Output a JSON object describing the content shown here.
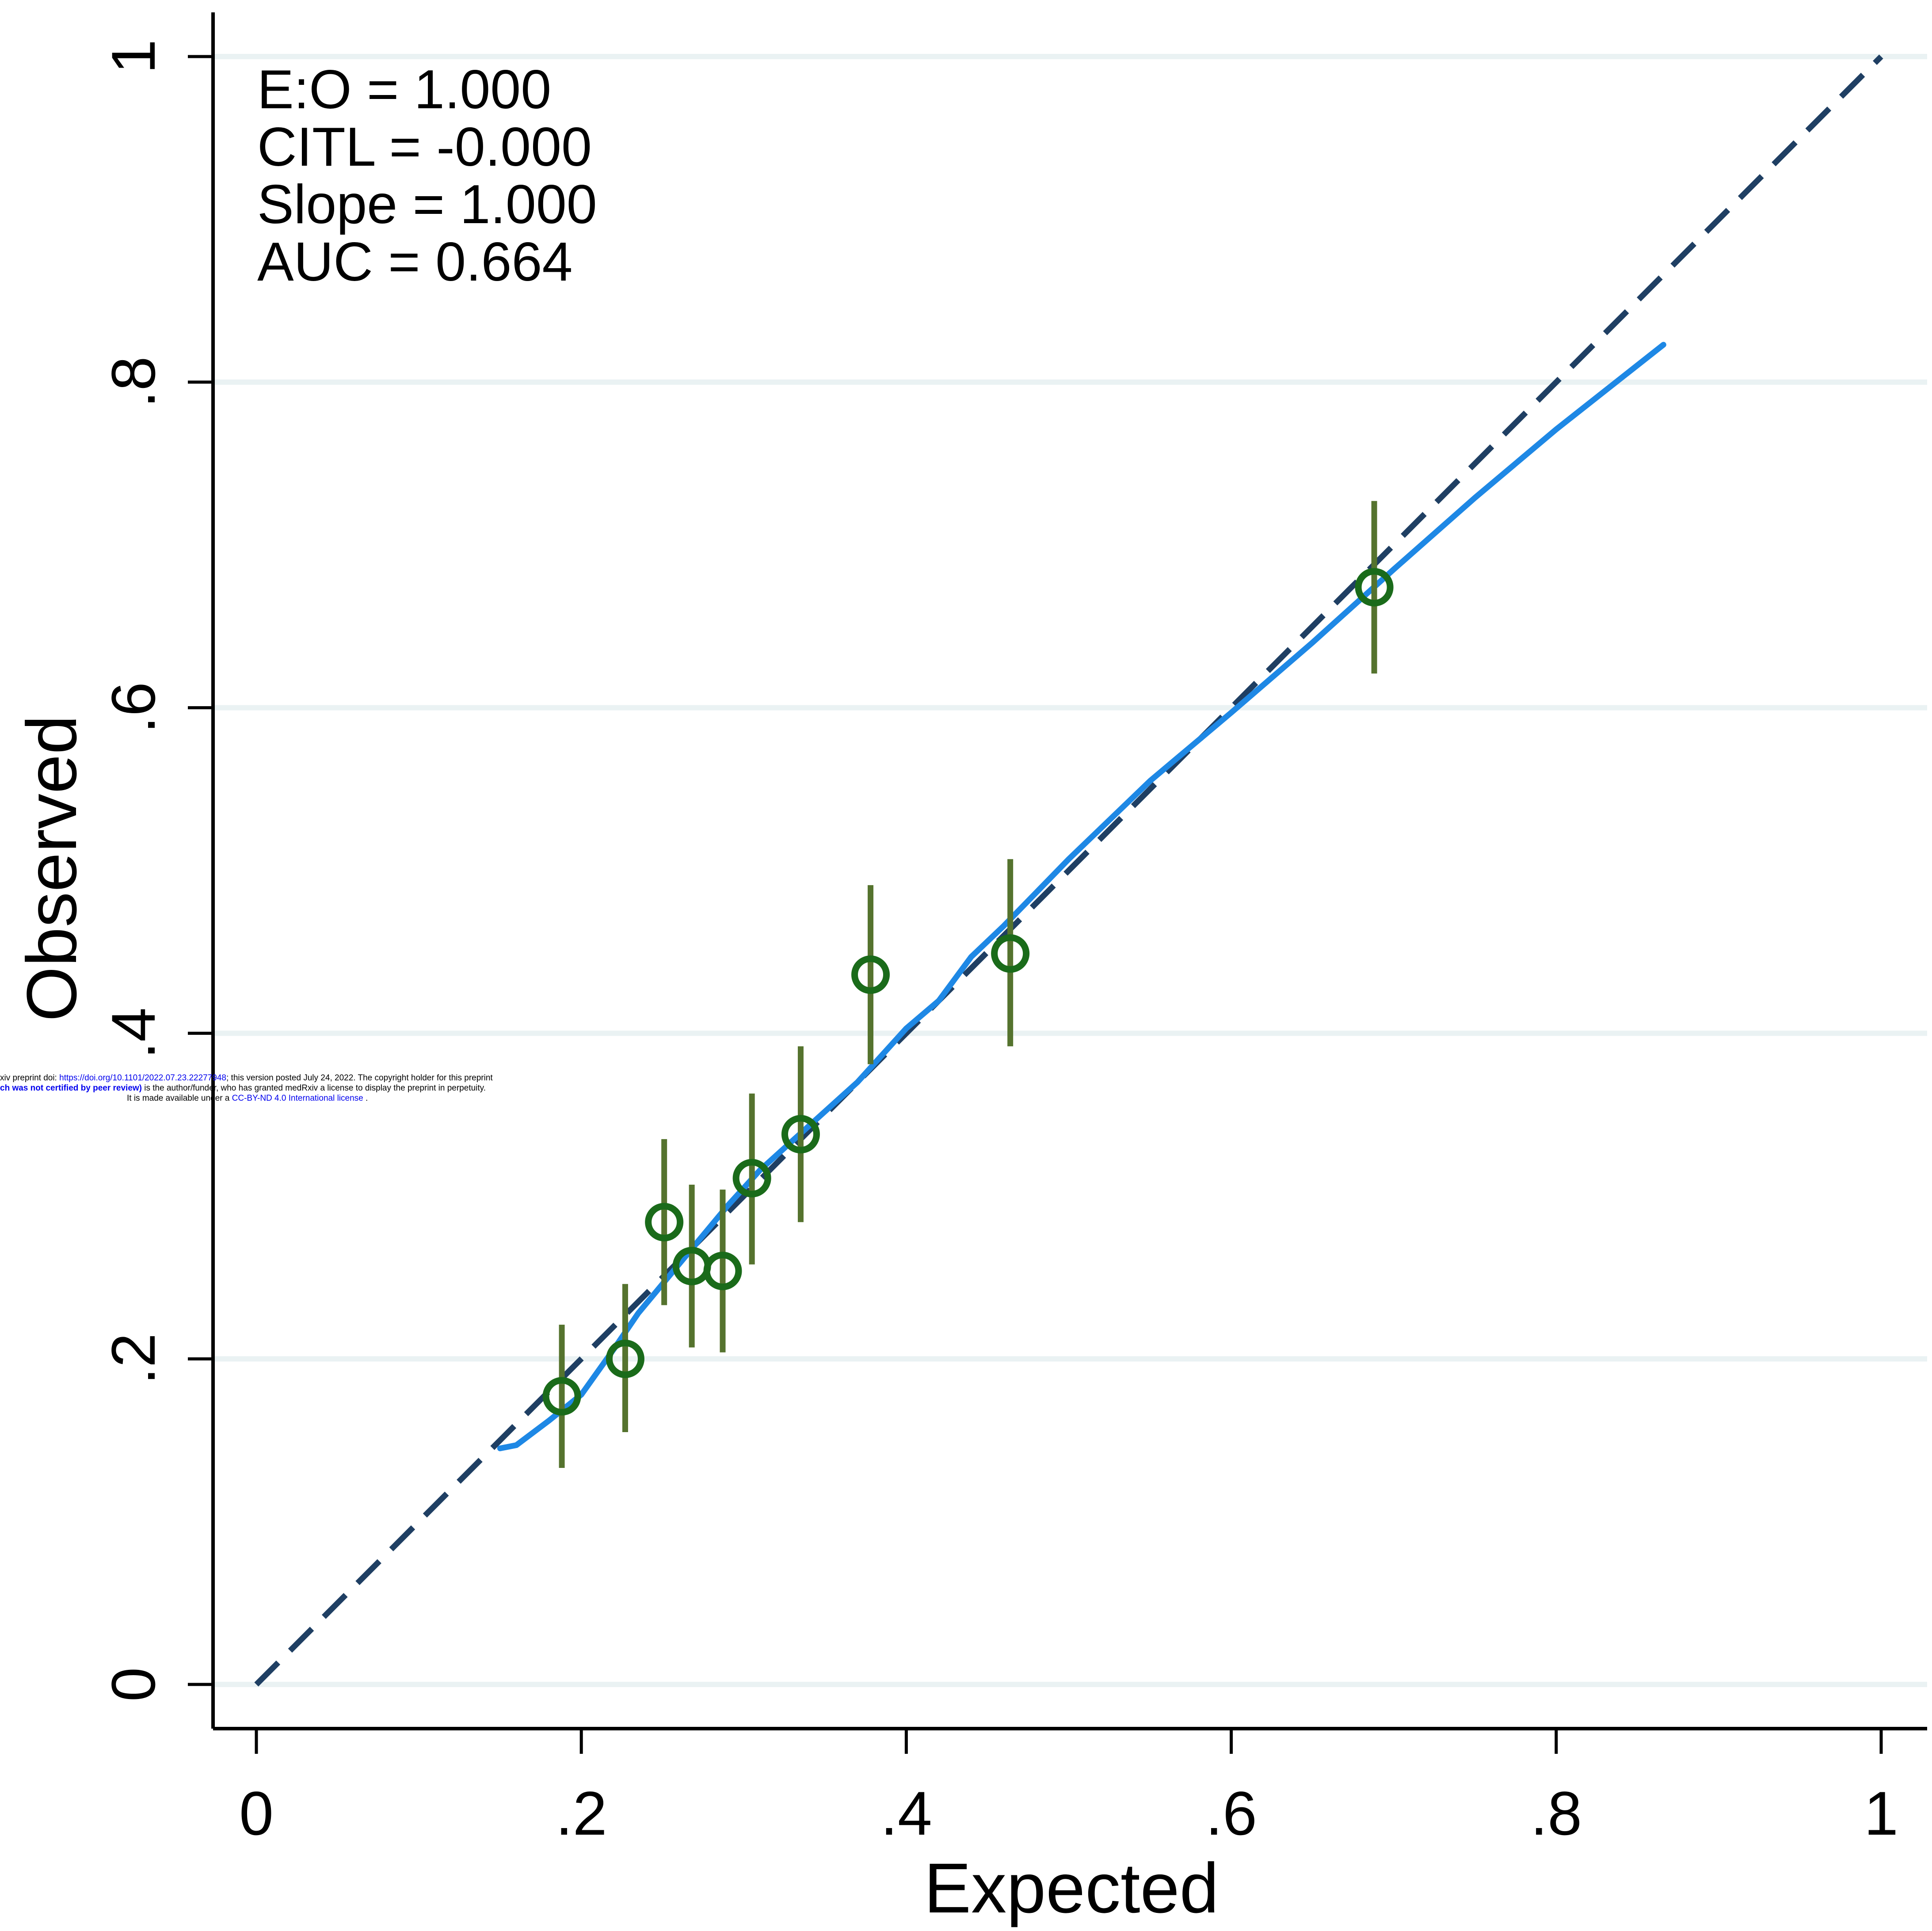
{
  "chart_data": {
    "type": "scatter",
    "xlabel": "Expected",
    "ylabel": "Observed",
    "xlim": [
      0,
      1
    ],
    "ylim": [
      0,
      1
    ],
    "x_ticks": [
      {
        "value": 0,
        "label": "0"
      },
      {
        "value": 0.2,
        "label": ".2"
      },
      {
        "value": 0.4,
        "label": ".4"
      },
      {
        "value": 0.6,
        "label": ".6"
      },
      {
        "value": 0.8,
        "label": ".8"
      },
      {
        "value": 1,
        "label": "1"
      }
    ],
    "y_ticks": [
      {
        "value": 0,
        "label": "0"
      },
      {
        "value": 0.2,
        "label": ".2"
      },
      {
        "value": 0.4,
        "label": ".4"
      },
      {
        "value": 0.6,
        "label": ".6"
      },
      {
        "value": 0.8,
        "label": ".8"
      },
      {
        "value": 1,
        "label": "1"
      }
    ],
    "grid": "horizontal",
    "annotations": [
      "E:O = 1.000",
      "CITL = -0.000",
      "Slope = 1.000",
      "AUC = 0.664"
    ],
    "reference_line": {
      "x": [
        0,
        1
      ],
      "y": [
        0,
        1
      ],
      "style": "dashed",
      "color": "#1f3f63"
    },
    "groups": {
      "marker_color": "#1a6b1a",
      "ci_color": "#55732e",
      "points": [
        {
          "x": 0.188,
          "y": 0.177,
          "lo": 0.133,
          "hi": 0.221
        },
        {
          "x": 0.227,
          "y": 0.2,
          "lo": 0.155,
          "hi": 0.246
        },
        {
          "x": 0.251,
          "y": 0.284,
          "lo": 0.233,
          "hi": 0.335
        },
        {
          "x": 0.268,
          "y": 0.257,
          "lo": 0.207,
          "hi": 0.307
        },
        {
          "x": 0.287,
          "y": 0.254,
          "lo": 0.204,
          "hi": 0.304
        },
        {
          "x": 0.305,
          "y": 0.311,
          "lo": 0.258,
          "hi": 0.363
        },
        {
          "x": 0.335,
          "y": 0.338,
          "lo": 0.284,
          "hi": 0.392
        },
        {
          "x": 0.378,
          "y": 0.436,
          "lo": 0.381,
          "hi": 0.491
        },
        {
          "x": 0.464,
          "y": 0.449,
          "lo": 0.392,
          "hi": 0.507
        },
        {
          "x": 0.688,
          "y": 0.674,
          "lo": 0.621,
          "hi": 0.727
        }
      ]
    },
    "smoothed_curve": {
      "color": "#1e88e5",
      "x": [
        0.15,
        0.16,
        0.18,
        0.2,
        0.22,
        0.235,
        0.25,
        0.27,
        0.29,
        0.31,
        0.33,
        0.35,
        0.37,
        0.4,
        0.42,
        0.44,
        0.46,
        0.5,
        0.55,
        0.6,
        0.65,
        0.7,
        0.75,
        0.8,
        0.866
      ],
      "y": [
        0.145,
        0.147,
        0.162,
        0.178,
        0.206,
        0.228,
        0.246,
        0.27,
        0.294,
        0.316,
        0.334,
        0.352,
        0.37,
        0.403,
        0.42,
        0.447,
        0.466,
        0.507,
        0.555,
        0.597,
        0.64,
        0.685,
        0.729,
        0.771,
        0.823
      ]
    }
  },
  "watermark": {
    "line1_prefix": "xiv preprint doi: ",
    "line1_link": "https://doi.org/10.1101/2022.07.23.22277948",
    "line1_suffix": "; this version posted July 24, 2022. The copyright holder for this preprint",
    "line2_bold": "ch was not certified by peer review)",
    "line2_suffix": " is the author/funder, who has granted medRxiv a license to display the preprint in perpetuity.",
    "line3_prefix": "It is made available under a ",
    "line3_link": "CC-BY-ND 4.0 International license",
    "line3_suffix": " ."
  }
}
